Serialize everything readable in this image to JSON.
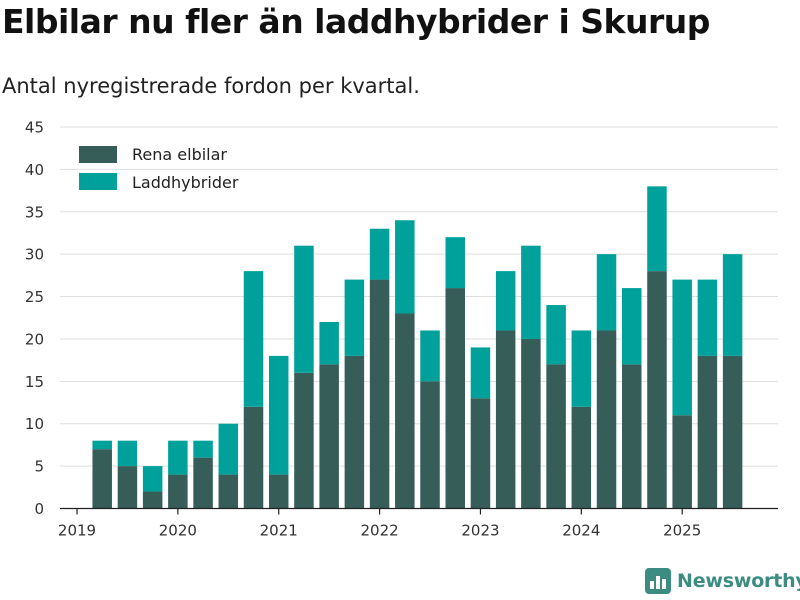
{
  "colors": {
    "elbilar": "#365d58",
    "laddhybrider": "#00a19a",
    "grid": "#dddddd",
    "brand": "#3d8c82"
  },
  "brand": {
    "name": "Newsworthy",
    "icon": "bar-chart-logo-icon"
  },
  "chart_data": {
    "type": "bar",
    "stacked": true,
    "title": "Elbilar nu fler än laddhybrider i Skurup",
    "subtitle": "Antal nyregistrerade fordon per kvartal.",
    "ylim": [
      0,
      45
    ],
    "yticks": [
      "0",
      "5",
      "10",
      "15",
      "20",
      "25",
      "30",
      "35",
      "40",
      "45"
    ],
    "xticks": [
      "2019",
      "2020",
      "2021",
      "2022",
      "2023",
      "2024",
      "2025"
    ],
    "xlim": [
      2019.0,
      2025.95
    ],
    "legend_position": "top-left",
    "grid": true,
    "x": [
      2019.25,
      2019.5,
      2019.75,
      2020.0,
      2020.25,
      2020.5,
      2020.75,
      2021.0,
      2021.25,
      2021.5,
      2021.75,
      2022.0,
      2022.25,
      2022.5,
      2022.75,
      2023.0,
      2023.25,
      2023.5,
      2023.75,
      2024.0,
      2024.25,
      2024.5,
      2024.75,
      2025.0,
      2025.25,
      2025.5
    ],
    "series": [
      {
        "name": "Rena elbilar",
        "values": [
          7,
          5,
          2,
          4,
          6,
          4,
          12,
          4,
          16,
          17,
          18,
          27,
          23,
          15,
          26,
          13,
          21,
          20,
          17,
          12,
          21,
          17,
          28,
          11,
          18,
          18
        ]
      },
      {
        "name": "Laddhybrider",
        "values": [
          1,
          3,
          3,
          4,
          2,
          6,
          16,
          14,
          15,
          5,
          9,
          6,
          11,
          6,
          6,
          6,
          7,
          11,
          7,
          9,
          9,
          9,
          10,
          16,
          9,
          12
        ]
      }
    ]
  }
}
